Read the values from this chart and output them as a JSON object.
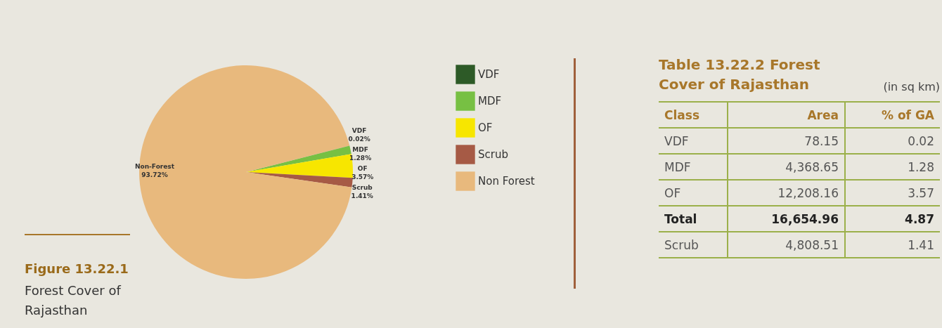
{
  "chart_data": [
    {
      "type": "pie",
      "title": "Figure 13.22.1",
      "subtitle": "Forest Cover of Rajasthan",
      "categories": [
        "VDF",
        "MDF",
        "OF",
        "Scrub",
        "Non Forest"
      ],
      "values": [
        0.02,
        1.28,
        3.57,
        1.41,
        93.72
      ],
      "colors": [
        "#2d5a27",
        "#77c043",
        "#f7e600",
        "#a65a45",
        "#e8b97d"
      ],
      "value_labels": [
        "VDF 0.02%",
        "MDF 1.28%",
        "OF 3.57%",
        "Scrub 1.41%",
        "Non-Forest 93.72%"
      ],
      "legend": "right"
    },
    {
      "type": "other",
      "title": "Table 13.22.2 Forest Cover of Rajasthan",
      "subtitle": "(in sq km)",
      "annotations": [
        "Class",
        "Area",
        "% of GA",
        "VDF",
        "78.15",
        "0.02",
        "MDF",
        "4,368.65",
        "1.28",
        "OF",
        "12,208.16",
        "3.57",
        "Total",
        "16,654.96",
        "4.87",
        "Scrub",
        "4,808.51",
        "1.41"
      ]
    }
  ]
}
